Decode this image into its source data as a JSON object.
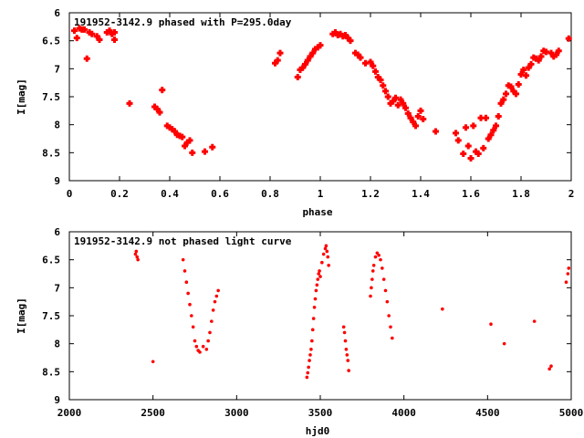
{
  "chart_data": [
    {
      "type": "scatter",
      "title": "191952-3142.9 phased with P=295.0day",
      "xlabel": "phase",
      "ylabel": "I[mag]",
      "xlim": [
        0,
        2
      ],
      "ylim": [
        9,
        6
      ],
      "y_inverted": true,
      "xticks": [
        "0",
        "0.2",
        "0.4",
        "0.6",
        "0.8",
        "1",
        "1.2",
        "1.4",
        "1.6",
        "1.8",
        "2"
      ],
      "yticks": [
        "6",
        "6.5",
        "7",
        "7.5",
        "8",
        "8.5",
        "9"
      ],
      "marker": "filled-cross",
      "color": "#ff0000",
      "grid": false,
      "points": [
        [
          0.02,
          6.32
        ],
        [
          0.03,
          6.45
        ],
        [
          0.04,
          6.28
        ],
        [
          0.05,
          6.3
        ],
        [
          0.06,
          6.3
        ],
        [
          0.07,
          6.82
        ],
        [
          0.08,
          6.35
        ],
        [
          0.09,
          6.38
        ],
        [
          0.11,
          6.42
        ],
        [
          0.12,
          6.48
        ],
        [
          0.15,
          6.35
        ],
        [
          0.16,
          6.32
        ],
        [
          0.17,
          6.38
        ],
        [
          0.18,
          6.35
        ],
        [
          0.18,
          6.48
        ],
        [
          0.24,
          7.62
        ],
        [
          0.34,
          7.68
        ],
        [
          0.35,
          7.72
        ],
        [
          0.36,
          7.78
        ],
        [
          0.37,
          7.38
        ],
        [
          0.39,
          8.02
        ],
        [
          0.4,
          8.05
        ],
        [
          0.41,
          8.08
        ],
        [
          0.42,
          8.12
        ],
        [
          0.43,
          8.18
        ],
        [
          0.44,
          8.2
        ],
        [
          0.45,
          8.22
        ],
        [
          0.46,
          8.38
        ],
        [
          0.47,
          8.32
        ],
        [
          0.48,
          8.28
        ],
        [
          0.49,
          8.5
        ],
        [
          0.54,
          8.48
        ],
        [
          0.57,
          8.4
        ],
        [
          0.82,
          6.9
        ],
        [
          0.83,
          6.85
        ],
        [
          0.84,
          6.72
        ],
        [
          0.91,
          7.15
        ],
        [
          0.92,
          7.02
        ],
        [
          0.93,
          6.98
        ],
        [
          0.94,
          6.92
        ],
        [
          0.95,
          6.85
        ],
        [
          0.96,
          6.78
        ],
        [
          0.97,
          6.72
        ],
        [
          0.98,
          6.65
        ],
        [
          0.99,
          6.62
        ],
        [
          1.0,
          6.58
        ],
        [
          1.05,
          6.38
        ],
        [
          1.06,
          6.35
        ],
        [
          1.07,
          6.4
        ],
        [
          1.08,
          6.38
        ],
        [
          1.09,
          6.42
        ],
        [
          1.1,
          6.4
        ],
        [
          1.11,
          6.45
        ],
        [
          1.12,
          6.5
        ],
        [
          1.14,
          6.72
        ],
        [
          1.15,
          6.75
        ],
        [
          1.16,
          6.8
        ],
        [
          1.18,
          6.9
        ],
        [
          1.2,
          6.88
        ],
        [
          1.21,
          6.95
        ],
        [
          1.22,
          7.05
        ],
        [
          1.23,
          7.15
        ],
        [
          1.24,
          7.2
        ],
        [
          1.25,
          7.3
        ],
        [
          1.26,
          7.4
        ],
        [
          1.27,
          7.5
        ],
        [
          1.28,
          7.62
        ],
        [
          1.29,
          7.58
        ],
        [
          1.3,
          7.52
        ],
        [
          1.31,
          7.65
        ],
        [
          1.32,
          7.55
        ],
        [
          1.33,
          7.62
        ],
        [
          1.34,
          7.7
        ],
        [
          1.35,
          7.8
        ],
        [
          1.36,
          7.88
        ],
        [
          1.37,
          7.95
        ],
        [
          1.38,
          8.02
        ],
        [
          1.39,
          7.85
        ],
        [
          1.4,
          7.75
        ],
        [
          1.41,
          7.9
        ],
        [
          1.46,
          8.12
        ],
        [
          1.54,
          8.15
        ],
        [
          1.55,
          8.28
        ],
        [
          1.57,
          8.52
        ],
        [
          1.58,
          8.05
        ],
        [
          1.59,
          8.38
        ],
        [
          1.6,
          8.6
        ],
        [
          1.61,
          8.02
        ],
        [
          1.62,
          8.48
        ],
        [
          1.63,
          8.52
        ],
        [
          1.64,
          7.88
        ],
        [
          1.65,
          8.42
        ],
        [
          1.66,
          7.88
        ],
        [
          1.67,
          8.25
        ],
        [
          1.68,
          8.18
        ],
        [
          1.69,
          8.1
        ],
        [
          1.7,
          8.02
        ],
        [
          1.71,
          7.85
        ],
        [
          1.72,
          7.62
        ],
        [
          1.73,
          7.55
        ],
        [
          1.74,
          7.45
        ],
        [
          1.75,
          7.3
        ],
        [
          1.76,
          7.32
        ],
        [
          1.77,
          7.4
        ],
        [
          1.78,
          7.45
        ],
        [
          1.79,
          7.28
        ],
        [
          1.8,
          7.1
        ],
        [
          1.81,
          7.02
        ],
        [
          1.82,
          7.12
        ],
        [
          1.83,
          6.98
        ],
        [
          1.84,
          6.92
        ],
        [
          1.85,
          6.8
        ],
        [
          1.86,
          6.82
        ],
        [
          1.87,
          6.85
        ],
        [
          1.88,
          6.78
        ],
        [
          1.89,
          6.68
        ],
        [
          1.9,
          6.7
        ],
        [
          1.92,
          6.72
        ],
        [
          1.93,
          6.78
        ],
        [
          1.94,
          6.75
        ],
        [
          1.95,
          6.68
        ],
        [
          1.99,
          6.46
        ]
      ]
    },
    {
      "type": "scatter",
      "title": "191952-3142.9 not phased light curve",
      "xlabel": "hjd0",
      "ylabel": "I[mag]",
      "xlim": [
        2000,
        5000
      ],
      "ylim": [
        9,
        6
      ],
      "y_inverted": true,
      "xticks": [
        "2000",
        "2500",
        "3000",
        "3500",
        "4000",
        "4500",
        "5000"
      ],
      "yticks": [
        "6",
        "6.5",
        "7",
        "7.5",
        "8",
        "8.5",
        "9"
      ],
      "marker": "filled-circle",
      "color": "#ff0000",
      "grid": false,
      "points": [
        [
          2395,
          6.4
        ],
        [
          2400,
          6.35
        ],
        [
          2405,
          6.45
        ],
        [
          2410,
          6.5
        ],
        [
          2500,
          8.32
        ],
        [
          2680,
          6.5
        ],
        [
          2690,
          6.7
        ],
        [
          2700,
          6.9
        ],
        [
          2710,
          7.1
        ],
        [
          2720,
          7.3
        ],
        [
          2730,
          7.5
        ],
        [
          2740,
          7.7
        ],
        [
          2750,
          7.95
        ],
        [
          2760,
          8.05
        ],
        [
          2770,
          8.12
        ],
        [
          2780,
          8.15
        ],
        [
          2800,
          8.05
        ],
        [
          2820,
          8.1
        ],
        [
          2830,
          7.95
        ],
        [
          2840,
          7.8
        ],
        [
          2850,
          7.6
        ],
        [
          2860,
          7.4
        ],
        [
          2870,
          7.25
        ],
        [
          2880,
          7.15
        ],
        [
          2890,
          7.05
        ],
        [
          3420,
          8.6
        ],
        [
          3425,
          8.52
        ],
        [
          3430,
          8.42
        ],
        [
          3435,
          8.3
        ],
        [
          3440,
          8.2
        ],
        [
          3445,
          8.1
        ],
        [
          3450,
          7.95
        ],
        [
          3455,
          7.75
        ],
        [
          3460,
          7.55
        ],
        [
          3465,
          7.35
        ],
        [
          3470,
          7.2
        ],
        [
          3475,
          7.05
        ],
        [
          3480,
          6.95
        ],
        [
          3485,
          6.85
        ],
        [
          3490,
          6.75
        ],
        [
          3495,
          6.7
        ],
        [
          3500,
          6.8
        ],
        [
          3510,
          6.55
        ],
        [
          3520,
          6.4
        ],
        [
          3530,
          6.3
        ],
        [
          3535,
          6.25
        ],
        [
          3540,
          6.35
        ],
        [
          3545,
          6.45
        ],
        [
          3550,
          6.6
        ],
        [
          3640,
          7.7
        ],
        [
          3645,
          7.8
        ],
        [
          3650,
          7.95
        ],
        [
          3655,
          8.1
        ],
        [
          3660,
          8.2
        ],
        [
          3665,
          8.3
        ],
        [
          3670,
          8.48
        ],
        [
          3800,
          7.15
        ],
        [
          3805,
          7.0
        ],
        [
          3810,
          6.85
        ],
        [
          3815,
          6.7
        ],
        [
          3820,
          6.6
        ],
        [
          3830,
          6.45
        ],
        [
          3840,
          6.38
        ],
        [
          3850,
          6.42
        ],
        [
          3860,
          6.5
        ],
        [
          3870,
          6.65
        ],
        [
          3880,
          6.85
        ],
        [
          3890,
          7.05
        ],
        [
          3900,
          7.25
        ],
        [
          3910,
          7.5
        ],
        [
          3920,
          7.7
        ],
        [
          3930,
          7.9
        ],
        [
          4230,
          7.38
        ],
        [
          4520,
          7.65
        ],
        [
          4600,
          8.0
        ],
        [
          4780,
          7.6
        ],
        [
          4870,
          8.45
        ],
        [
          4880,
          8.4
        ],
        [
          4970,
          6.9
        ],
        [
          4980,
          6.75
        ],
        [
          4985,
          6.65
        ]
      ]
    }
  ]
}
